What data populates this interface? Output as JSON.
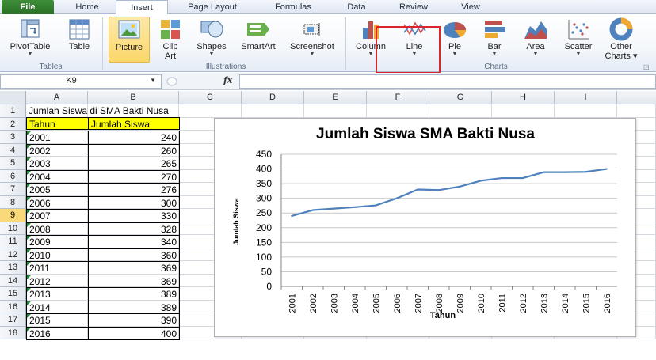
{
  "ribbon_tabs": [
    {
      "label": "File"
    },
    {
      "label": "Home"
    },
    {
      "label": "Insert"
    },
    {
      "label": "Page Layout"
    },
    {
      "label": "Formulas"
    },
    {
      "label": "Data"
    },
    {
      "label": "Review"
    },
    {
      "label": "View"
    }
  ],
  "ribbon": {
    "tables": {
      "group_label": "Tables",
      "pivot_label": "PivotTable",
      "table_label": "Table"
    },
    "illustrations": {
      "group_label": "Illustrations",
      "picture_label": "Picture",
      "clip_label_1": "Clip",
      "clip_label_2": "Art",
      "shapes_label": "Shapes",
      "smartart_label": "SmartArt",
      "screenshot_label": "Screenshot"
    },
    "charts": {
      "group_label": "Charts",
      "column_label": "Column",
      "line_label": "Line",
      "pie_label": "Pie",
      "bar_label": "Bar",
      "area_label": "Area",
      "scatter_label": "Scatter",
      "other_label_1": "Other",
      "other_label_2": "Charts"
    }
  },
  "formula_bar": {
    "name_box": "K9",
    "fx_label": "fx",
    "formula": ""
  },
  "columns": [
    "A",
    "B",
    "C",
    "D",
    "E",
    "F",
    "G",
    "H",
    "I"
  ],
  "rows": [
    "1",
    "2",
    "3",
    "4",
    "5",
    "6",
    "7",
    "8",
    "9",
    "10",
    "11",
    "12",
    "13",
    "14",
    "15",
    "16",
    "17",
    "18"
  ],
  "selected_row": "9",
  "sheet": {
    "title": "Jumlah Siswa di SMA Bakti Nusa",
    "header_year": "Tahun",
    "header_count": "Jumlah Siswa",
    "records": [
      {
        "year": "2001",
        "count": "240"
      },
      {
        "year": "2002",
        "count": "260"
      },
      {
        "year": "2003",
        "count": "265"
      },
      {
        "year": "2004",
        "count": "270"
      },
      {
        "year": "2005",
        "count": "276"
      },
      {
        "year": "2006",
        "count": "300"
      },
      {
        "year": "2007",
        "count": "330"
      },
      {
        "year": "2008",
        "count": "328"
      },
      {
        "year": "2009",
        "count": "340"
      },
      {
        "year": "2010",
        "count": "360"
      },
      {
        "year": "2011",
        "count": "369"
      },
      {
        "year": "2012",
        "count": "369"
      },
      {
        "year": "2013",
        "count": "389"
      },
      {
        "year": "2014",
        "count": "389"
      },
      {
        "year": "2015",
        "count": "390"
      },
      {
        "year": "2016",
        "count": "400"
      }
    ]
  },
  "chart_data": {
    "type": "line",
    "title": "Jumlah Siswa  SMA Bakti Nusa",
    "xlabel": "Tahun",
    "ylabel": "Jumlah Siswa",
    "categories": [
      "2001",
      "2002",
      "2003",
      "2004",
      "2005",
      "2006",
      "2007",
      "2008",
      "2009",
      "2010",
      "2011",
      "2012",
      "2013",
      "2014",
      "2015",
      "2016"
    ],
    "series": [
      {
        "values": [
          240,
          260,
          265,
          270,
          276,
          300,
          330,
          328,
          340,
          360,
          369,
          369,
          389,
          389,
          390,
          400
        ],
        "color": "#4f81bd"
      }
    ],
    "ylim": [
      0,
      450
    ],
    "yticks": [
      0,
      50,
      100,
      150,
      200,
      250,
      300,
      350,
      400,
      450
    ],
    "grid": true,
    "legend": "none"
  },
  "colors": {
    "line": "#4f81bd",
    "header_fill": "#ffff00",
    "highlight_box": "#d9252b",
    "file_tab": "#2f7d2b"
  }
}
